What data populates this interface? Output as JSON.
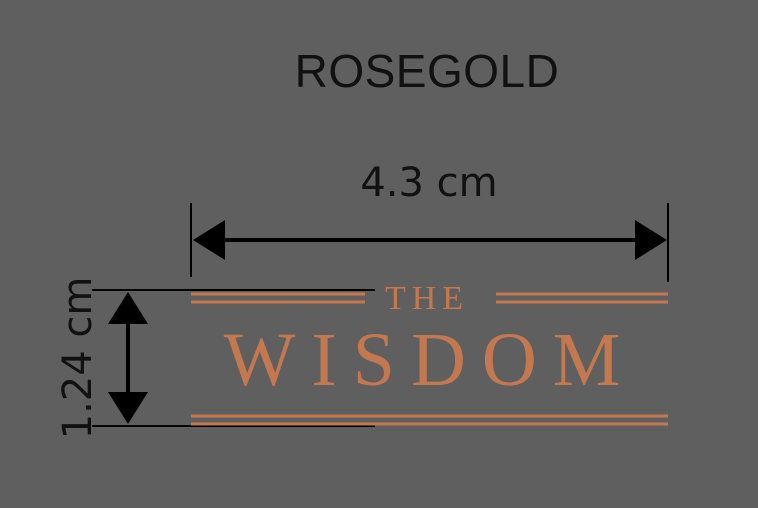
{
  "colour_label": "ROSEGOLD",
  "dimensions": {
    "width_label": "4.3 cm",
    "height_label": "1.24 cm"
  },
  "logo": {
    "line1": "THE",
    "line2": "WISDOM",
    "color": "#c4784f"
  },
  "colors": {
    "background": "#5f5f5f",
    "dimension_lines": "#000000"
  }
}
